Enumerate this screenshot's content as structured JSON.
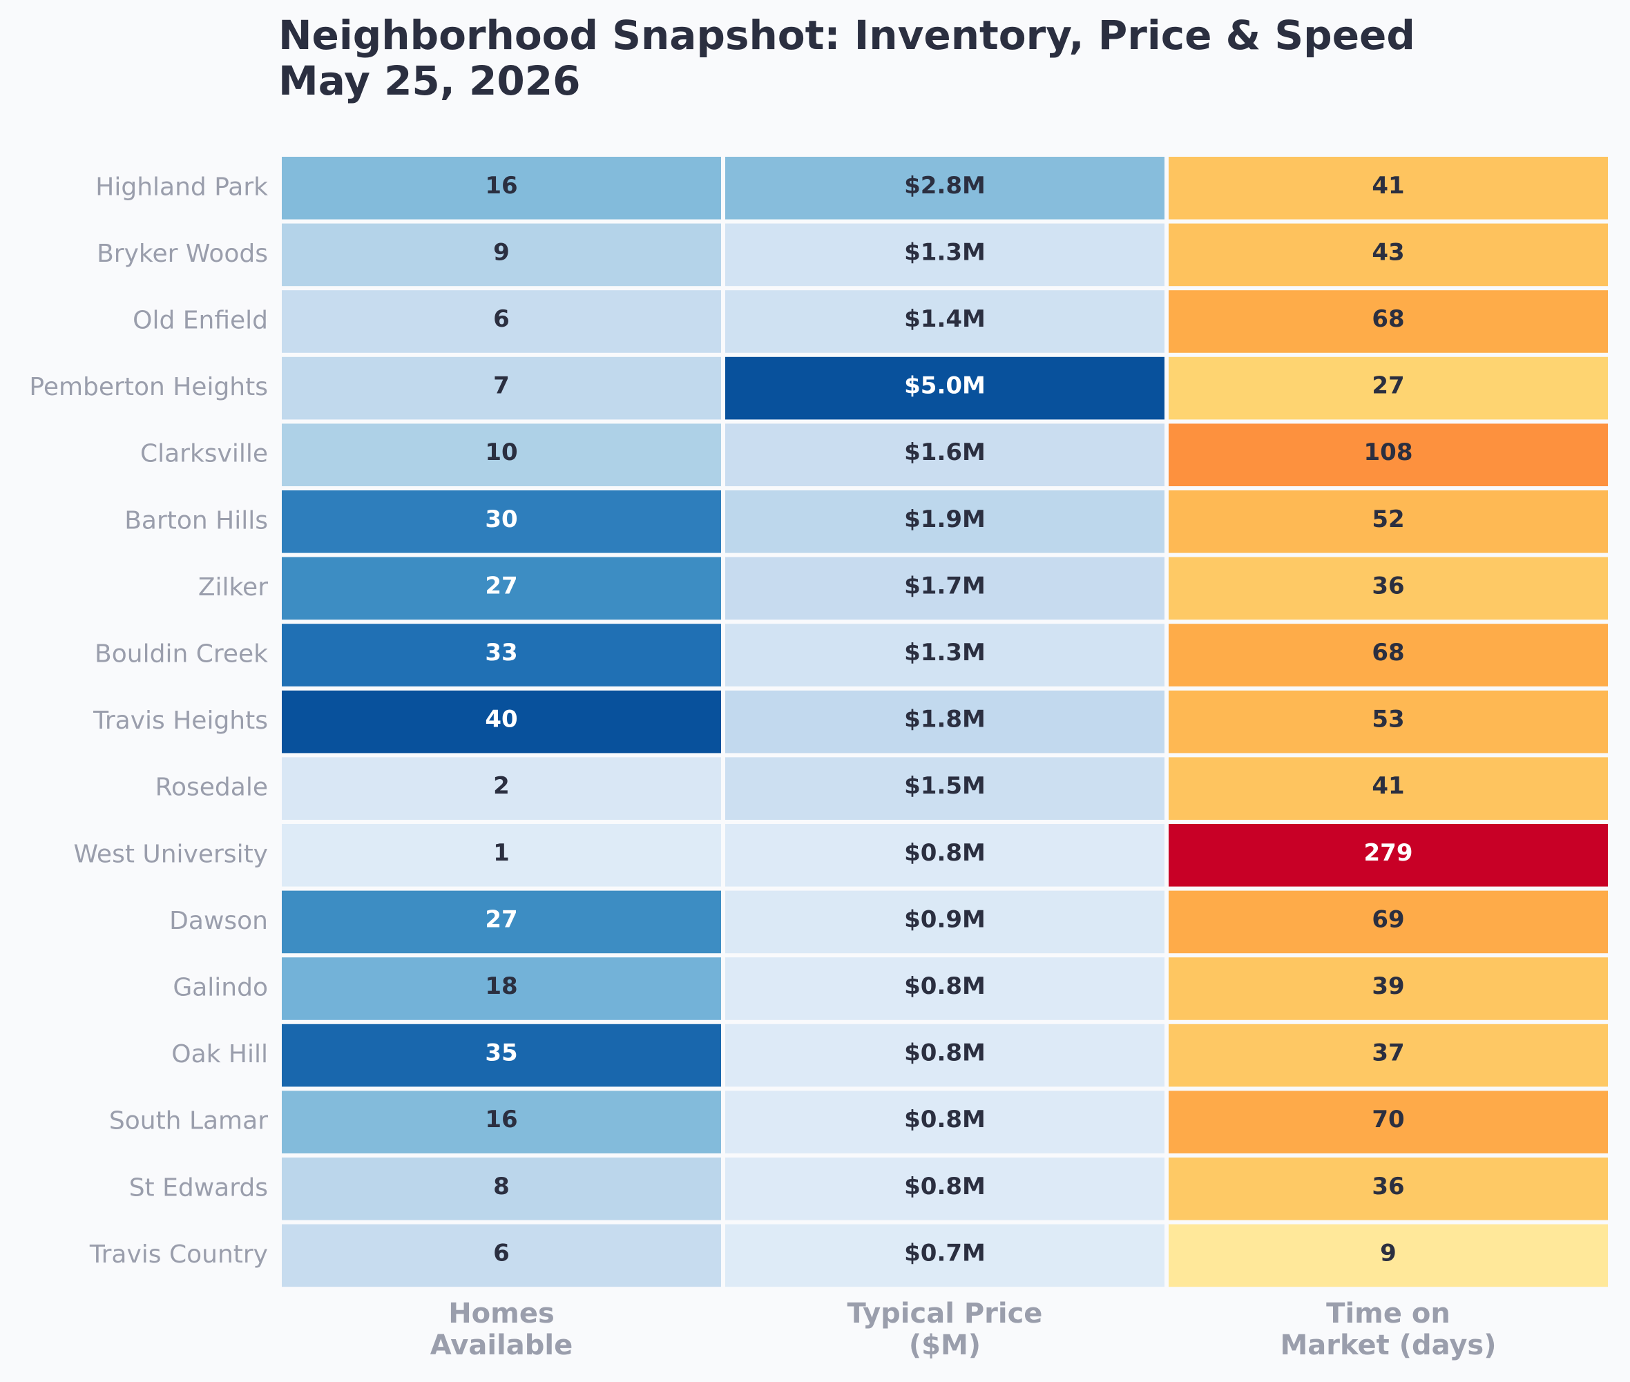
{
  "chart_data": {
    "type": "heatmap",
    "title": "Neighborhood Snapshot: Inventory, Price & Speed",
    "subtitle": "May 25, 2026",
    "rows": [
      "Highland Park",
      "Bryker Woods",
      "Old Enfield",
      "Pemberton Heights",
      "Clarksville",
      "Barton Hills",
      "Zilker",
      "Bouldin Creek",
      "Travis Heights",
      "Rosedale",
      "West University",
      "Dawson",
      "Galindo",
      "Oak Hill",
      "South Lamar",
      "St Edwards",
      "Travis Country"
    ],
    "columns": [
      {
        "label": [
          "Homes",
          "Available"
        ],
        "values": [
          16,
          9,
          6,
          7,
          10,
          30,
          27,
          33,
          40,
          2,
          1,
          27,
          18,
          35,
          16,
          8,
          6
        ],
        "labels": [
          "16",
          "9",
          "6",
          "7",
          "10",
          "30",
          "27",
          "33",
          "40",
          "2",
          "1",
          "27",
          "18",
          "35",
          "16",
          "8",
          "6"
        ],
        "colorscale": "Blues"
      },
      {
        "label": [
          "Typical Price",
          "($M)"
        ],
        "values": [
          2.8,
          1.3,
          1.4,
          5.0,
          1.6,
          1.9,
          1.7,
          1.3,
          1.8,
          1.5,
          0.8,
          0.9,
          0.8,
          0.8,
          0.8,
          0.8,
          0.7
        ],
        "labels": [
          "$2.8M",
          "$1.3M",
          "$1.4M",
          "$5.0M",
          "$1.6M",
          "$1.9M",
          "$1.7M",
          "$1.3M",
          "$1.8M",
          "$1.5M",
          "$0.8M",
          "$0.9M",
          "$0.8M",
          "$0.8M",
          "$0.8M",
          "$0.8M",
          "$0.7M"
        ],
        "colorscale": "Blues"
      },
      {
        "label": [
          "Time on",
          "Market (days)"
        ],
        "values": [
          41,
          43,
          68,
          27,
          108,
          52,
          36,
          68,
          53,
          41,
          279,
          69,
          39,
          37,
          70,
          36,
          9
        ],
        "labels": [
          "41",
          "43",
          "68",
          "27",
          "108",
          "52",
          "36",
          "68",
          "53",
          "41",
          "279",
          "69",
          "39",
          "37",
          "70",
          "36",
          "9"
        ],
        "colorscale": "YlOrRd"
      }
    ],
    "colors": {
      "background": "#f9fafc",
      "title": "#2b2f40",
      "axis_labels": "#9a9eac",
      "cell_text_dark": "#2b2f40",
      "cell_text_light": "#ffffff",
      "cell_border": "#ffffff"
    }
  }
}
